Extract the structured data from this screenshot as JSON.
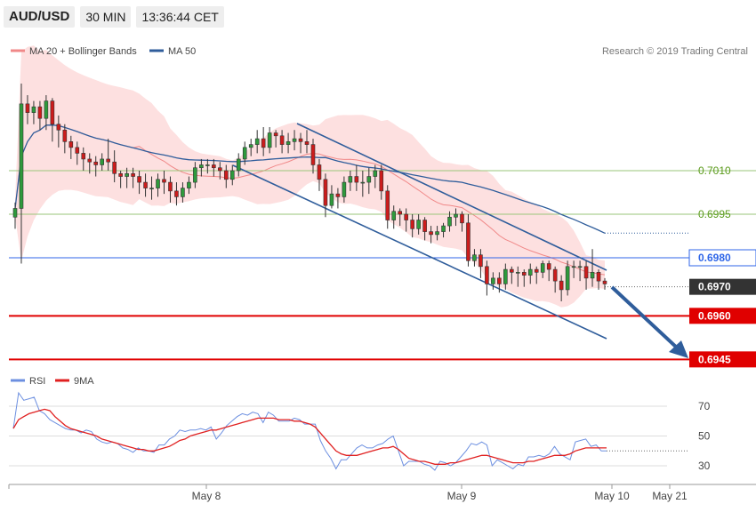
{
  "header": {
    "symbol": "AUD/USD",
    "timeframe": "30 MIN",
    "time": "13:36:44 CET"
  },
  "legend": {
    "bb_label": "MA 20 + Bollinger Bands",
    "ma50_label": "MA 50",
    "rsi_label": "RSI",
    "ma9_label": "9MA"
  },
  "copyright": "Research © 2019 Trading Central",
  "colors": {
    "bullish": "#2e9a3c",
    "bearish": "#cc1c1c",
    "bb_fill": "#fde0e0",
    "bb_line": "#f08888",
    "ma50": "#2f5d9b",
    "channel": "#2f5d9b",
    "rsi": "#6c8fe0",
    "ma9": "#e02020",
    "support": "#e00000",
    "pivot": "#2f66e8",
    "resistance": "#9ac67a",
    "current": "#333333"
  },
  "chart_data": [
    {
      "type": "candlestick",
      "title": "AUD/USD 30 MIN",
      "x_labels": [
        "May 8",
        "May 9",
        "May 10",
        "May 21"
      ],
      "ylim": [
        0.694,
        0.7045
      ],
      "y_ticks": [
        "0.7010",
        "0.6995"
      ],
      "levels": [
        {
          "value": "0.7010",
          "kind": "resistance"
        },
        {
          "value": "0.6995",
          "kind": "resistance"
        },
        {
          "value": "0.6980",
          "kind": "pivot"
        },
        {
          "value": "0.6970",
          "kind": "current"
        },
        {
          "value": "0.6960",
          "kind": "support"
        },
        {
          "value": "0.6945",
          "kind": "support"
        }
      ],
      "candles": [
        [
          0.6994,
          0.6997,
          0.699,
          0.6999
        ],
        [
          0.6997,
          0.7033,
          0.6978,
          0.704
        ],
        [
          0.7033,
          0.703,
          0.7026,
          0.7036
        ],
        [
          0.703,
          0.7032,
          0.7026,
          0.7034
        ],
        [
          0.7032,
          0.7028,
          0.7024,
          0.7034
        ],
        [
          0.7028,
          0.7034,
          0.7024,
          0.7036
        ],
        [
          0.7034,
          0.7026,
          0.702,
          0.7035
        ],
        [
          0.7026,
          0.7024,
          0.7018,
          0.7029
        ],
        [
          0.7024,
          0.702,
          0.7016,
          0.7026
        ],
        [
          0.702,
          0.7018,
          0.7014,
          0.7022
        ],
        [
          0.7018,
          0.7016,
          0.7012,
          0.702
        ],
        [
          0.7016,
          0.7014,
          0.701,
          0.7018
        ],
        [
          0.7014,
          0.7013,
          0.7009,
          0.7016
        ],
        [
          0.7013,
          0.7012,
          0.7008,
          0.7015
        ],
        [
          0.7012,
          0.7014,
          0.701,
          0.7016
        ],
        [
          0.7014,
          0.7013,
          0.701,
          0.7021
        ],
        [
          0.7013,
          0.7009,
          0.7006,
          0.7017
        ],
        [
          0.7009,
          0.7008,
          0.7004,
          0.701
        ],
        [
          0.7008,
          0.7009,
          0.7004,
          0.7011
        ],
        [
          0.7009,
          0.7008,
          0.7004,
          0.7011
        ],
        [
          0.7008,
          0.7006,
          0.7002,
          0.701
        ],
        [
          0.7006,
          0.7004,
          0.7001,
          0.7009
        ],
        [
          0.7004,
          0.7004,
          0.7,
          0.7008
        ],
        [
          0.7004,
          0.7007,
          0.7001,
          0.7009
        ],
        [
          0.7007,
          0.7006,
          0.7002,
          0.701
        ],
        [
          0.7006,
          0.7003,
          0.6999,
          0.7008
        ],
        [
          0.7003,
          0.7001,
          0.6998,
          0.7006
        ],
        [
          0.7001,
          0.7004,
          0.6999,
          0.7006
        ],
        [
          0.7004,
          0.7006,
          0.7002,
          0.7008
        ],
        [
          0.7006,
          0.7011,
          0.7004,
          0.7013
        ],
        [
          0.7011,
          0.7012,
          0.7008,
          0.7014
        ],
        [
          0.7012,
          0.7012,
          0.7009,
          0.7014
        ],
        [
          0.7012,
          0.7011,
          0.7008,
          0.7014
        ],
        [
          0.7011,
          0.701,
          0.7007,
          0.7013
        ],
        [
          0.701,
          0.7007,
          0.7004,
          0.7012
        ],
        [
          0.7007,
          0.701,
          0.7005,
          0.7012
        ],
        [
          0.701,
          0.7014,
          0.7008,
          0.7016
        ],
        [
          0.7014,
          0.7018,
          0.7012,
          0.702
        ],
        [
          0.7018,
          0.7019,
          0.7015,
          0.7021
        ],
        [
          0.7019,
          0.7021,
          0.7016,
          0.7024
        ],
        [
          0.7021,
          0.7018,
          0.7015,
          0.7025
        ],
        [
          0.7018,
          0.7023,
          0.7016,
          0.7025
        ],
        [
          0.7023,
          0.7022,
          0.7018,
          0.7024
        ],
        [
          0.7022,
          0.7019,
          0.7016,
          0.7024
        ],
        [
          0.7019,
          0.702,
          0.7016,
          0.7023
        ],
        [
          0.702,
          0.7021,
          0.7017,
          0.7024
        ],
        [
          0.7021,
          0.702,
          0.7016,
          0.7023
        ],
        [
          0.702,
          0.7019,
          0.7016,
          0.7024
        ],
        [
          0.7019,
          0.7012,
          0.7009,
          0.7021
        ],
        [
          0.7012,
          0.7007,
          0.7003,
          0.7014
        ],
        [
          0.7007,
          0.6998,
          0.6994,
          0.7009
        ],
        [
          0.6998,
          0.7002,
          0.6997,
          0.7005
        ],
        [
          0.7002,
          0.7001,
          0.6997,
          0.7004
        ],
        [
          0.7001,
          0.7006,
          0.6999,
          0.7008
        ],
        [
          0.7006,
          0.7008,
          0.7003,
          0.701
        ],
        [
          0.7008,
          0.7006,
          0.7003,
          0.7012
        ],
        [
          0.7006,
          0.7006,
          0.7001,
          0.701
        ],
        [
          0.7006,
          0.7008,
          0.7002,
          0.7011
        ],
        [
          0.7008,
          0.701,
          0.7004,
          0.7012
        ],
        [
          0.701,
          0.7003,
          0.7,
          0.7012
        ],
        [
          0.7003,
          0.6993,
          0.699,
          0.7005
        ],
        [
          0.6993,
          0.6996,
          0.699,
          0.6998
        ],
        [
          0.6996,
          0.6995,
          0.6991,
          0.6997
        ],
        [
          0.6995,
          0.6993,
          0.6989,
          0.6997
        ],
        [
          0.6993,
          0.699,
          0.6987,
          0.6995
        ],
        [
          0.699,
          0.6993,
          0.6988,
          0.6995
        ],
        [
          0.6993,
          0.6989,
          0.6986,
          0.6994
        ],
        [
          0.6989,
          0.6988,
          0.6985,
          0.6991
        ],
        [
          0.6988,
          0.6989,
          0.6986,
          0.6991
        ],
        [
          0.6989,
          0.6991,
          0.6987,
          0.6992
        ],
        [
          0.6991,
          0.6994,
          0.6989,
          0.6996
        ],
        [
          0.6994,
          0.6995,
          0.6991,
          0.6997
        ],
        [
          0.6995,
          0.6992,
          0.6989,
          0.6996
        ],
        [
          0.6992,
          0.6979,
          0.6977,
          0.6995
        ],
        [
          0.6979,
          0.6981,
          0.6977,
          0.6983
        ],
        [
          0.6981,
          0.6977,
          0.6973,
          0.6983
        ],
        [
          0.6977,
          0.6971,
          0.6967,
          0.6979
        ],
        [
          0.6971,
          0.6973,
          0.6969,
          0.6975
        ],
        [
          0.6973,
          0.6971,
          0.6968,
          0.6975
        ],
        [
          0.6971,
          0.6976,
          0.6969,
          0.6978
        ],
        [
          0.6976,
          0.6975,
          0.6971,
          0.6977
        ],
        [
          0.6975,
          0.6975,
          0.697,
          0.6977
        ],
        [
          0.6975,
          0.6974,
          0.697,
          0.6976
        ],
        [
          0.6974,
          0.6976,
          0.6971,
          0.6978
        ],
        [
          0.6976,
          0.6975,
          0.6971,
          0.6977
        ],
        [
          0.6975,
          0.6978,
          0.6973,
          0.6979
        ],
        [
          0.6978,
          0.6976,
          0.6972,
          0.6979
        ],
        [
          0.6976,
          0.6972,
          0.6968,
          0.6977
        ],
        [
          0.6972,
          0.6969,
          0.6965,
          0.6974
        ],
        [
          0.6969,
          0.6977,
          0.6967,
          0.6979
        ],
        [
          0.6977,
          0.6977,
          0.6973,
          0.6979
        ],
        [
          0.6977,
          0.6977,
          0.6972,
          0.6979
        ],
        [
          0.6977,
          0.6973,
          0.6969,
          0.6979
        ],
        [
          0.6973,
          0.6975,
          0.697,
          0.6983
        ],
        [
          0.6975,
          0.6972,
          0.6969,
          0.6976
        ],
        [
          0.6972,
          0.6971,
          0.6969,
          0.6973
        ]
      ]
    },
    {
      "type": "line",
      "title": "RSI",
      "series": [
        {
          "name": "RSI",
          "values": [
            55,
            79,
            74,
            75,
            76,
            67,
            65,
            61,
            59,
            57,
            55,
            54,
            54,
            52,
            54,
            53,
            48,
            46,
            45,
            46,
            45,
            42,
            41,
            39,
            42,
            40,
            40,
            39,
            44,
            44,
            48,
            50,
            54,
            53,
            54,
            54,
            55,
            54,
            56,
            48,
            52,
            57,
            60,
            63,
            65,
            64,
            66,
            65,
            59,
            66,
            64,
            60,
            60,
            60,
            62,
            61,
            58,
            58,
            58,
            47,
            40,
            35,
            28,
            34,
            34,
            38,
            42,
            44,
            42,
            42,
            44,
            45,
            48,
            50,
            40,
            30,
            33,
            33,
            33,
            31,
            30,
            27,
            33,
            32,
            30,
            32,
            36,
            40,
            45,
            44,
            46,
            44,
            30,
            34,
            32,
            30,
            28,
            31,
            30,
            36,
            36,
            37,
            36,
            38,
            43,
            38,
            36,
            34,
            46,
            47,
            48,
            43,
            44,
            40,
            40
          ]
        },
        {
          "name": "9MA",
          "values": [
            55,
            61,
            63,
            65,
            66,
            67,
            68,
            67,
            63,
            60,
            57,
            55,
            54,
            53,
            52,
            51,
            50,
            48,
            47,
            46,
            45,
            44,
            43,
            42,
            41,
            41,
            40,
            40,
            41,
            42,
            43,
            45,
            47,
            48,
            50,
            51,
            52,
            53,
            54,
            54,
            55,
            56,
            57,
            58,
            59,
            60,
            61,
            62,
            62,
            62,
            62,
            61,
            61,
            61,
            60,
            60,
            59,
            58,
            56,
            52,
            48,
            44,
            40,
            38,
            37,
            37,
            37,
            38,
            39,
            40,
            41,
            42,
            42,
            43,
            41,
            38,
            35,
            34,
            33,
            33,
            32,
            31,
            31,
            31,
            32,
            32,
            33,
            34,
            35,
            36,
            37,
            37,
            36,
            35,
            34,
            33,
            32,
            32,
            32,
            33,
            33,
            34,
            35,
            36,
            37,
            37,
            37,
            38,
            40,
            41,
            42,
            42,
            42,
            42,
            42
          ]
        }
      ],
      "y_ticks": [
        70,
        50,
        30
      ],
      "ylim": [
        20,
        85
      ]
    }
  ]
}
